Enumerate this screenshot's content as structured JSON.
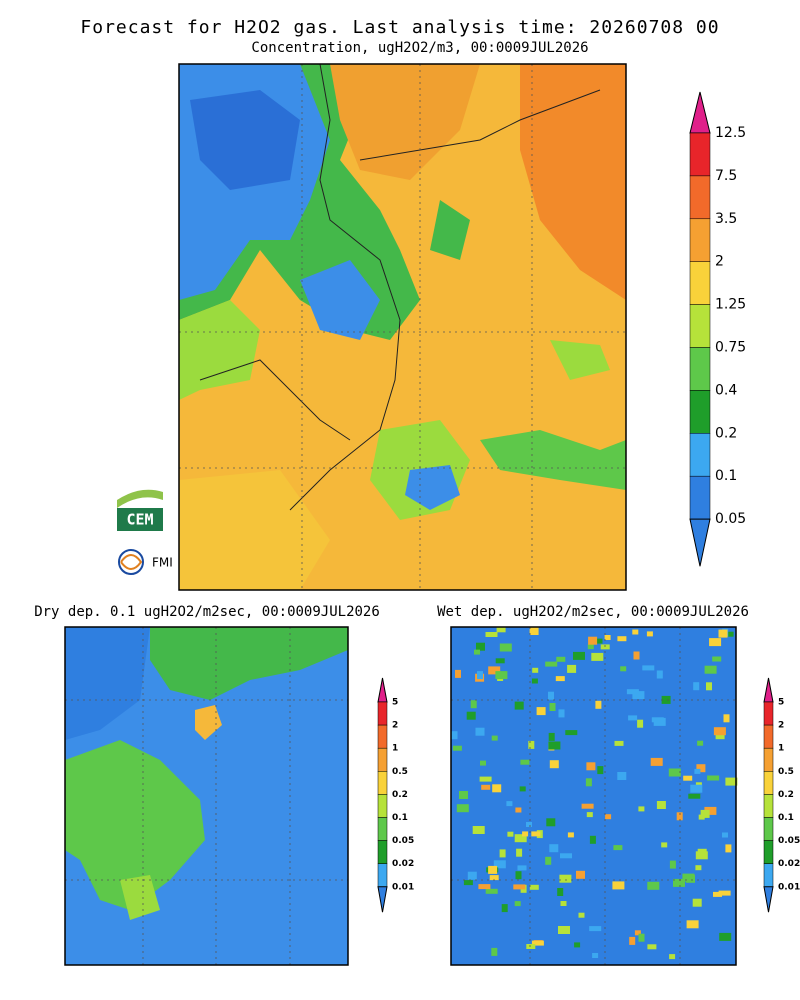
{
  "header": {
    "title": "Forecast for H2O2 gas. Last analysis time: 20260708 00",
    "subtitle": "Concentration, ugH2O2/m3, 00:0009JUL2026"
  },
  "main_colorbar": {
    "labels": [
      "12.5",
      "7.5",
      "3.5",
      "2",
      "1.25",
      "0.75",
      "0.4",
      "0.2",
      "0.1",
      "0.05"
    ]
  },
  "dry_panel": {
    "title": "Dry dep. 0.1 ugH2O2/m2sec, 00:0009JUL2026",
    "colorbar_labels": [
      "5",
      "2",
      "1",
      "0.5",
      "0.2",
      "0.1",
      "0.05",
      "0.02",
      "0.01"
    ]
  },
  "wet_panel": {
    "title": "Wet dep. ugH2O2/m2sec, 00:0009JUL2026",
    "colorbar_labels": [
      "5",
      "2",
      "1",
      "0.5",
      "0.2",
      "0.1",
      "0.05",
      "0.02",
      "0.01"
    ]
  },
  "logos": {
    "cem": "CEM",
    "fmi": "FMI"
  }
}
